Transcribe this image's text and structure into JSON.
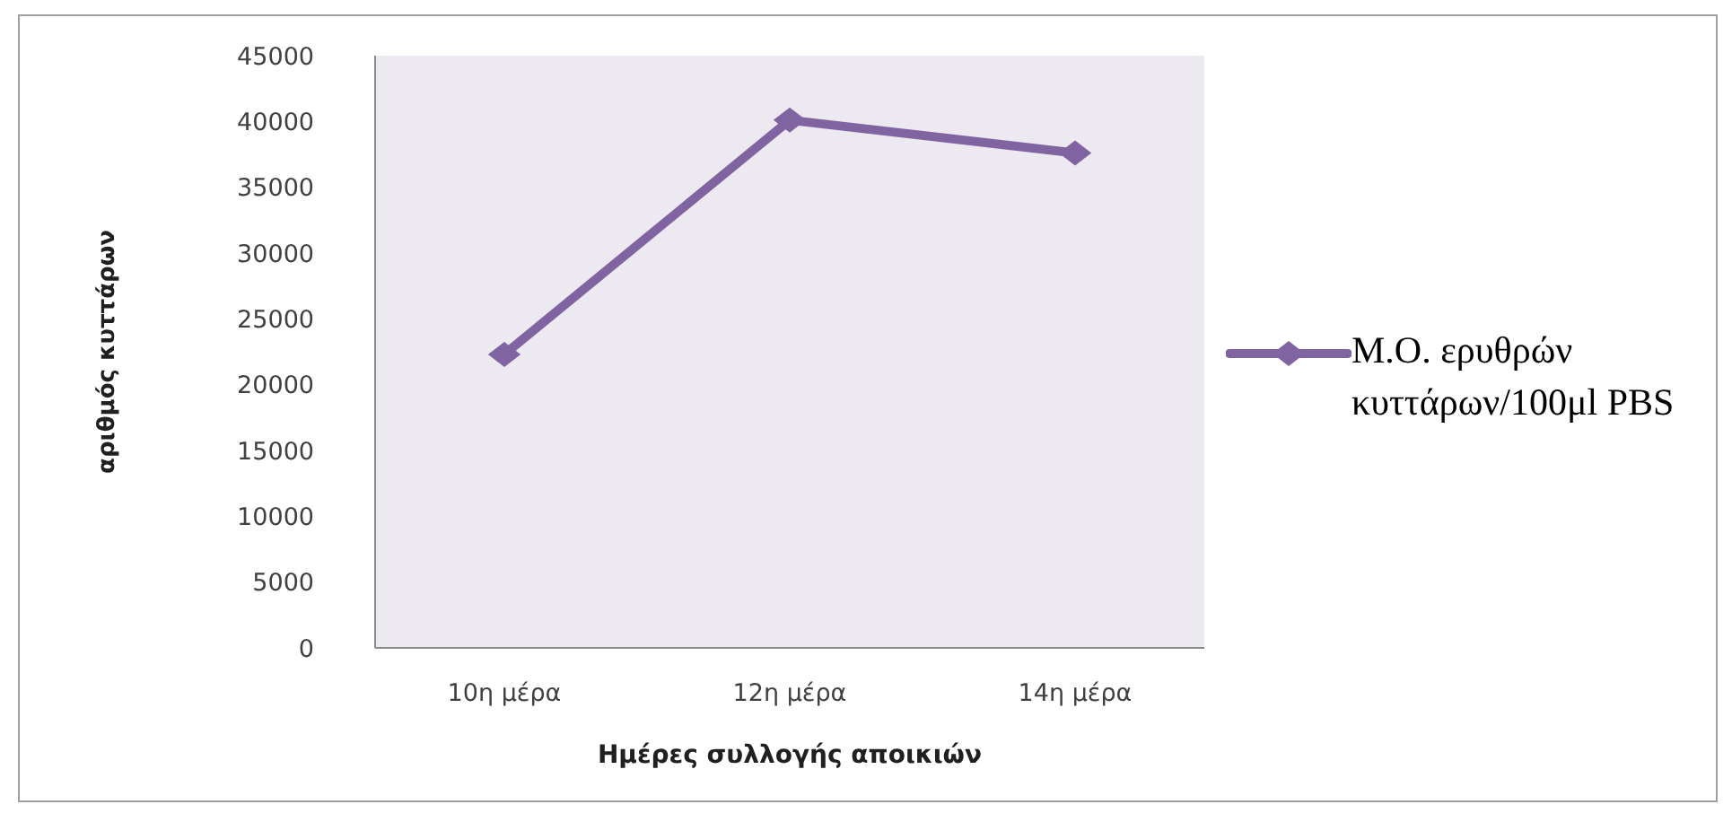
{
  "chart_data": {
    "type": "line",
    "xlabel": "Ημέρες συλλογής αποικιών",
    "ylabel": "αριθμός κυττάρων",
    "categories": [
      "10η μέρα",
      "12η μέρα",
      "14η μέρα"
    ],
    "series": [
      {
        "name": "Μ.Ο. ερυθρών κυττάρων/100μl PBS",
        "color": "#8064a2",
        "values": [
          22300,
          40100,
          37600
        ]
      }
    ],
    "ylim": [
      0,
      45000
    ],
    "yticks": [
      0,
      5000,
      10000,
      15000,
      20000,
      25000,
      30000,
      35000,
      40000,
      45000
    ],
    "grid": false,
    "legend": "right",
    "marker": "diamond"
  }
}
